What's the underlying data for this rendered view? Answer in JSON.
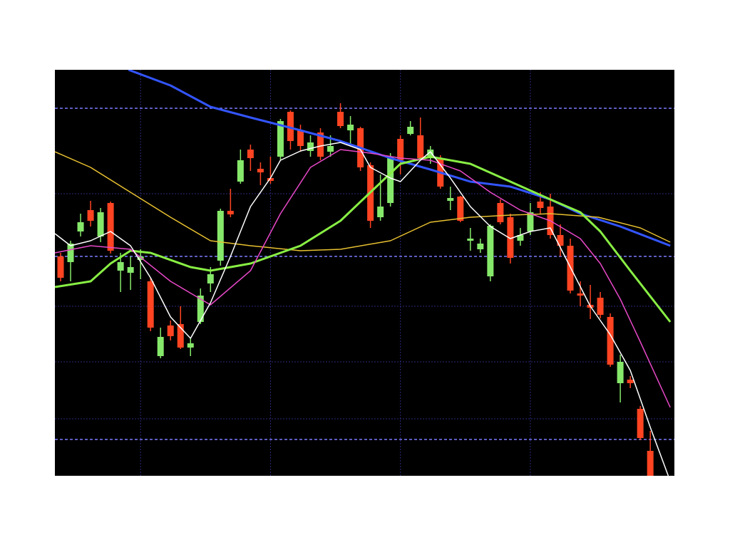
{
  "chart_data": {
    "type": "candlestick",
    "ylim": [
      0,
      570
    ],
    "xlim": [
      -0.57,
      61.4
    ],
    "yticks": [
      51,
      308,
      516
    ],
    "minor_yticks": [
      80,
      160,
      238,
      396
    ],
    "xticks": [
      8,
      21,
      34,
      47
    ],
    "grid": true,
    "up_color": "#86e86a",
    "down_color": "#ff4422",
    "candles": [
      [
        308,
        278,
        313,
        273
      ],
      [
        300,
        326,
        330,
        273
      ],
      [
        343,
        356,
        368,
        336
      ],
      [
        373,
        358,
        386,
        350
      ],
      [
        336,
        370,
        376,
        328
      ],
      [
        383,
        316,
        385,
        312
      ],
      [
        288,
        300,
        313,
        258
      ],
      [
        285,
        293,
        308,
        261
      ],
      [
        303,
        308,
        318,
        276
      ],
      [
        273,
        208,
        278,
        203
      ],
      [
        168,
        195,
        208,
        165
      ],
      [
        211,
        196,
        218,
        190
      ],
      [
        213,
        180,
        238,
        178
      ],
      [
        180,
        186,
        193,
        168
      ],
      [
        216,
        253,
        263,
        213
      ],
      [
        270,
        283,
        293,
        258
      ],
      [
        302,
        372,
        375,
        295
      ],
      [
        372,
        367,
        403,
        363
      ],
      [
        413,
        443,
        458,
        410
      ],
      [
        458,
        446,
        465,
        428
      ],
      [
        431,
        426,
        440,
        408
      ],
      [
        418,
        414,
        448,
        410
      ],
      [
        448,
        498,
        501,
        443
      ],
      [
        511,
        470,
        513,
        458
      ],
      [
        485,
        463,
        493,
        455
      ],
      [
        456,
        468,
        478,
        448
      ],
      [
        482,
        448,
        488,
        443
      ],
      [
        455,
        463,
        478,
        448
      ],
      [
        511,
        491,
        523,
        488
      ],
      [
        485,
        493,
        505,
        463
      ],
      [
        488,
        433,
        490,
        428
      ],
      [
        436,
        358,
        440,
        348
      ],
      [
        363,
        378,
        423,
        358
      ],
      [
        383,
        448,
        453,
        378
      ],
      [
        473,
        443,
        478,
        423
      ],
      [
        480,
        490,
        498,
        478
      ],
      [
        478,
        446,
        503,
        443
      ],
      [
        446,
        458,
        463,
        438
      ],
      [
        446,
        406,
        450,
        403
      ],
      [
        386,
        390,
        406,
        373
      ],
      [
        392,
        358,
        393,
        356
      ],
      [
        330,
        333,
        348,
        316
      ],
      [
        318,
        326,
        333,
        313
      ],
      [
        280,
        351,
        353,
        273
      ],
      [
        383,
        356,
        388,
        353
      ],
      [
        363,
        306,
        368,
        298
      ],
      [
        330,
        338,
        348,
        323
      ],
      [
        343,
        370,
        383,
        338
      ],
      [
        385,
        376,
        398,
        368
      ],
      [
        378,
        338,
        396,
        333
      ],
      [
        338,
        323,
        353,
        308
      ],
      [
        323,
        260,
        333,
        256
      ],
      [
        256,
        253,
        273,
        238
      ],
      [
        240,
        236,
        268,
        220
      ],
      [
        250,
        226,
        258,
        221
      ],
      [
        223,
        156,
        228,
        153
      ],
      [
        130,
        160,
        170,
        103
      ],
      [
        135,
        130,
        140,
        123
      ],
      [
        94,
        53,
        98,
        50
      ],
      [
        35,
        0,
        63,
        0
      ]
    ],
    "series": [
      {
        "color": "#3355ff",
        "width": 3,
        "x": [
          6.8,
          11,
          15,
          19,
          24,
          28,
          33,
          37,
          41,
          45,
          49,
          52,
          56,
          61
        ],
        "values": [
          570,
          548,
          518,
          503,
          485,
          470,
          446,
          430,
          413,
          406,
          388,
          368,
          350,
          323
        ]
      },
      {
        "color": "#e8c030",
        "width": 1.5,
        "x": [
          -0.57,
          3,
          7,
          11,
          15,
          19,
          24,
          28,
          33,
          37,
          41,
          45,
          49,
          53.8,
          58,
          61
        ],
        "values": [
          455,
          433,
          398,
          363,
          330,
          323,
          316,
          318,
          330,
          356,
          363,
          366,
          368,
          363,
          348,
          328
        ]
      },
      {
        "color": "#88ee44",
        "width": 3,
        "x": [
          -0.57,
          3,
          5,
          7,
          9,
          13,
          15,
          19,
          24,
          28,
          31,
          34,
          37,
          41,
          45,
          49,
          52,
          54,
          57,
          61
        ],
        "values": [
          265,
          273,
          298,
          316,
          313,
          293,
          288,
          298,
          323,
          358,
          398,
          438,
          448,
          438,
          413,
          388,
          370,
          343,
          288,
          216
        ]
      },
      {
        "color": "#e848c8",
        "width": 1.5,
        "x": [
          -0.57,
          3,
          7,
          11,
          15,
          19,
          22,
          25,
          28,
          31,
          34,
          37,
          40,
          43,
          46,
          49,
          52,
          54,
          56,
          58,
          61
        ],
        "values": [
          313,
          323,
          318,
          273,
          240,
          288,
          368,
          433,
          458,
          453,
          446,
          443,
          428,
          398,
          373,
          358,
          333,
          298,
          248,
          188,
          96
        ]
      },
      {
        "color": "#ffffff",
        "width": 1.5,
        "x": [
          -0.57,
          1,
          3,
          5,
          7,
          9,
          11,
          13,
          15,
          17,
          19,
          21,
          22,
          24,
          26,
          28,
          30,
          31,
          33,
          34,
          36,
          37,
          39,
          41,
          43,
          45,
          47,
          49,
          51,
          53,
          55,
          57,
          59,
          60.8
        ],
        "values": [
          340,
          323,
          330,
          343,
          323,
          278,
          223,
          193,
          243,
          308,
          378,
          418,
          443,
          456,
          463,
          468,
          458,
          433,
          418,
          413,
          443,
          455,
          418,
          378,
          350,
          333,
          343,
          348,
          293,
          238,
          198,
          148,
          68,
          0
        ]
      }
    ]
  }
}
